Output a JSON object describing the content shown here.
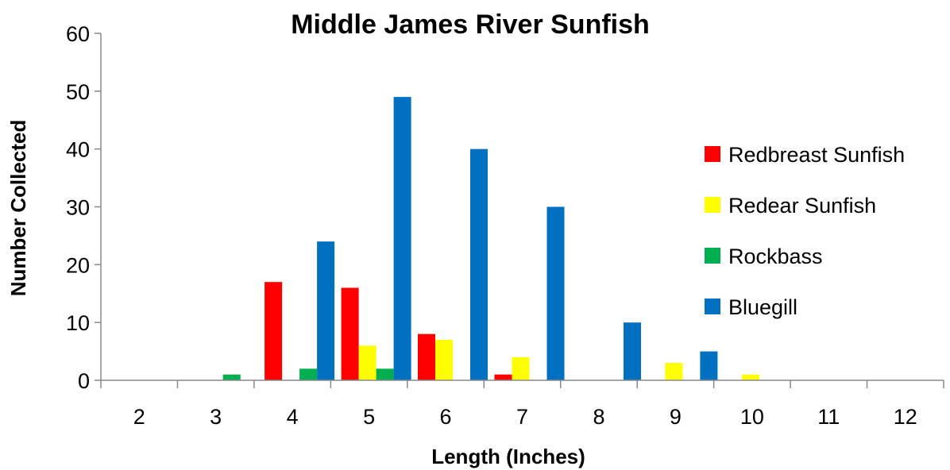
{
  "chart_data": {
    "type": "bar",
    "title": "Middle James River Sunfish",
    "xlabel": "Length (Inches)",
    "ylabel": "Number Collected",
    "categories": [
      "2",
      "3",
      "4",
      "5",
      "6",
      "7",
      "8",
      "9",
      "10",
      "11",
      "12"
    ],
    "ylim": [
      0,
      60
    ],
    "yticks": [
      0,
      10,
      20,
      30,
      40,
      50,
      60
    ],
    "grid": false,
    "legend_position": "right",
    "series": [
      {
        "name": "Redbreast Sunfish",
        "color": "#ff0000",
        "values": [
          0,
          0,
          17,
          16,
          8,
          1,
          0,
          0,
          0,
          0,
          0
        ]
      },
      {
        "name": "Redear Sunfish",
        "color": "#ffff00",
        "values": [
          0,
          0,
          0,
          6,
          7,
          4,
          0,
          3,
          1,
          0,
          0
        ]
      },
      {
        "name": "Rockbass",
        "color": "#00b050",
        "values": [
          0,
          1,
          2,
          2,
          0,
          0,
          0,
          0,
          0,
          0,
          0
        ]
      },
      {
        "name": "Bluegill",
        "color": "#0070c0",
        "values": [
          0,
          0,
          24,
          49,
          40,
          30,
          10,
          5,
          0,
          0,
          0
        ]
      }
    ]
  }
}
